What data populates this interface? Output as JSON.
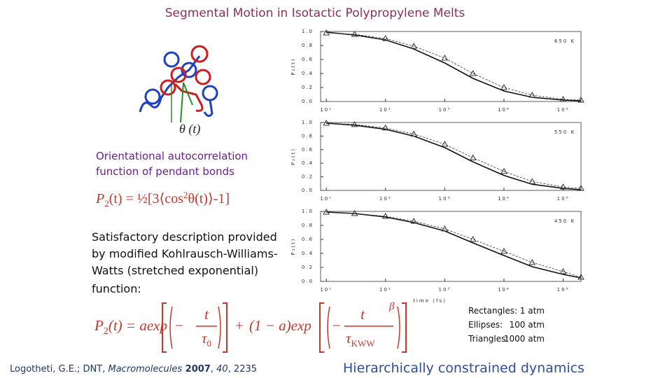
{
  "title": "Segmental Motion in Isotactic Polypropylene Melts",
  "diagram_label": "θ (t)",
  "description": [
    "Orientational autocorrelation",
    "function of pendant bonds"
  ],
  "equation1": [
    "P",
    "2",
    "(t) = ½[3⟨cos",
    "2",
    "θ(t)⟩-1]"
  ],
  "kww_text": [
    "Satisfactory description provided",
    "by modified Kohlrausch-Williams-",
    "Watts (stretched exponential)",
    "function:"
  ],
  "equation2": {
    "lhs": [
      "P",
      "2",
      "(t) = aexp"
    ],
    "minus": "−",
    "t": "t",
    "tau": "τ",
    "tau0_sub": "0",
    "plus": "+",
    "middle": "(1 − a)exp",
    "tauKWW_sub": "KWW",
    "beta": "β"
  },
  "legend": [
    [
      "Rectangles:",
      "1 atm"
    ],
    [
      "Ellipses:",
      "100 atm"
    ],
    [
      "Triangles:",
      "1000 atm"
    ]
  ],
  "citation": [
    "Logotheti, G.E.; DNT, ",
    "Macromolecules",
    " 2007",
    ", ",
    "40",
    ", 2235"
  ],
  "footer": "Hierarchically constrained dynamics",
  "chart_data": [
    {
      "type": "line",
      "label": "650 K",
      "ylabel": "P₂(t)",
      "xlog": true,
      "x": [
        10,
        30,
        100,
        300,
        1000,
        3000,
        10000,
        30000,
        100000,
        200000
      ],
      "series": [
        {
          "color": "#111",
          "marker": "none",
          "values": [
            0.99,
            0.95,
            0.88,
            0.75,
            0.55,
            0.33,
            0.15,
            0.06,
            0.02,
            0.01
          ]
        },
        {
          "color": "#333",
          "marker": "triangle",
          "values": [
            0.98,
            0.96,
            0.9,
            0.79,
            0.62,
            0.4,
            0.2,
            0.09,
            0.03,
            0.02
          ]
        }
      ],
      "xlim": [
        8,
        200000
      ],
      "ylim": [
        0,
        1
      ],
      "xticks": [
        {
          "value": 10,
          "label": "10¹"
        },
        {
          "value": 100,
          "label": "10²"
        },
        {
          "value": 1000,
          "label": "10³"
        },
        {
          "value": 10000,
          "label": "10⁴"
        },
        {
          "value": 100000,
          "label": "10⁵"
        }
      ],
      "yticks": [
        {
          "value": 0,
          "label": "0.0"
        },
        {
          "value": 0.2,
          "label": "0.2"
        },
        {
          "value": 0.4,
          "label": "0.4"
        },
        {
          "value": 0.6,
          "label": "0.6"
        },
        {
          "value": 0.8,
          "label": "0.8"
        },
        {
          "value": 1,
          "label": "1.0"
        }
      ]
    },
    {
      "type": "line",
      "label": "550 K",
      "ylabel": "P₂(t)",
      "xlog": true,
      "x": [
        10,
        30,
        100,
        300,
        1000,
        3000,
        10000,
        30000,
        100000,
        200000
      ],
      "series": [
        {
          "color": "#111",
          "marker": "none",
          "values": [
            0.99,
            0.96,
            0.9,
            0.8,
            0.63,
            0.42,
            0.22,
            0.09,
            0.03,
            0.01
          ]
        },
        {
          "color": "#333",
          "marker": "triangle",
          "values": [
            0.99,
            0.97,
            0.92,
            0.83,
            0.68,
            0.48,
            0.28,
            0.13,
            0.05,
            0.03
          ]
        }
      ],
      "xlim": [
        8,
        200000
      ],
      "ylim": [
        0,
        1
      ],
      "xticks": [
        {
          "value": 10,
          "label": "10¹"
        },
        {
          "value": 100,
          "label": "10²"
        },
        {
          "value": 1000,
          "label": "10³"
        },
        {
          "value": 10000,
          "label": "10⁴"
        },
        {
          "value": 100000,
          "label": "10⁵"
        }
      ],
      "yticks": [
        {
          "value": 0,
          "label": "0.0"
        },
        {
          "value": 0.2,
          "label": "0.2"
        },
        {
          "value": 0.4,
          "label": "0.4"
        },
        {
          "value": 0.6,
          "label": "0.6"
        },
        {
          "value": 0.8,
          "label": "0.8"
        },
        {
          "value": 1,
          "label": "1.0"
        }
      ]
    },
    {
      "type": "line",
      "label": "450 K",
      "ylabel": "P₂(t)",
      "xlabel": "time (fs)",
      "xlog": true,
      "x": [
        10,
        30,
        100,
        300,
        1000,
        3000,
        10000,
        30000,
        100000,
        200000
      ],
      "series": [
        {
          "color": "#111",
          "marker": "none",
          "values": [
            0.99,
            0.97,
            0.92,
            0.84,
            0.72,
            0.55,
            0.37,
            0.21,
            0.1,
            0.05
          ]
        },
        {
          "color": "#333",
          "marker": "triangle",
          "values": [
            0.99,
            0.97,
            0.93,
            0.86,
            0.75,
            0.6,
            0.43,
            0.27,
            0.14,
            0.06
          ]
        }
      ],
      "xlim": [
        8,
        200000
      ],
      "ylim": [
        0,
        1
      ],
      "xticks": [
        {
          "value": 10,
          "label": "10¹"
        },
        {
          "value": 100,
          "label": "10²"
        },
        {
          "value": 1000,
          "label": "10³"
        },
        {
          "value": 10000,
          "label": "10⁴"
        },
        {
          "value": 100000,
          "label": "10⁵"
        }
      ],
      "yticks": [
        {
          "value": 0,
          "label": "0.0"
        },
        {
          "value": 0.2,
          "label": "0.2"
        },
        {
          "value": 0.4,
          "label": "0.4"
        },
        {
          "value": 0.6,
          "label": "0.6"
        },
        {
          "value": 0.8,
          "label": "0.8"
        },
        {
          "value": 1,
          "label": "1.0"
        }
      ]
    }
  ]
}
